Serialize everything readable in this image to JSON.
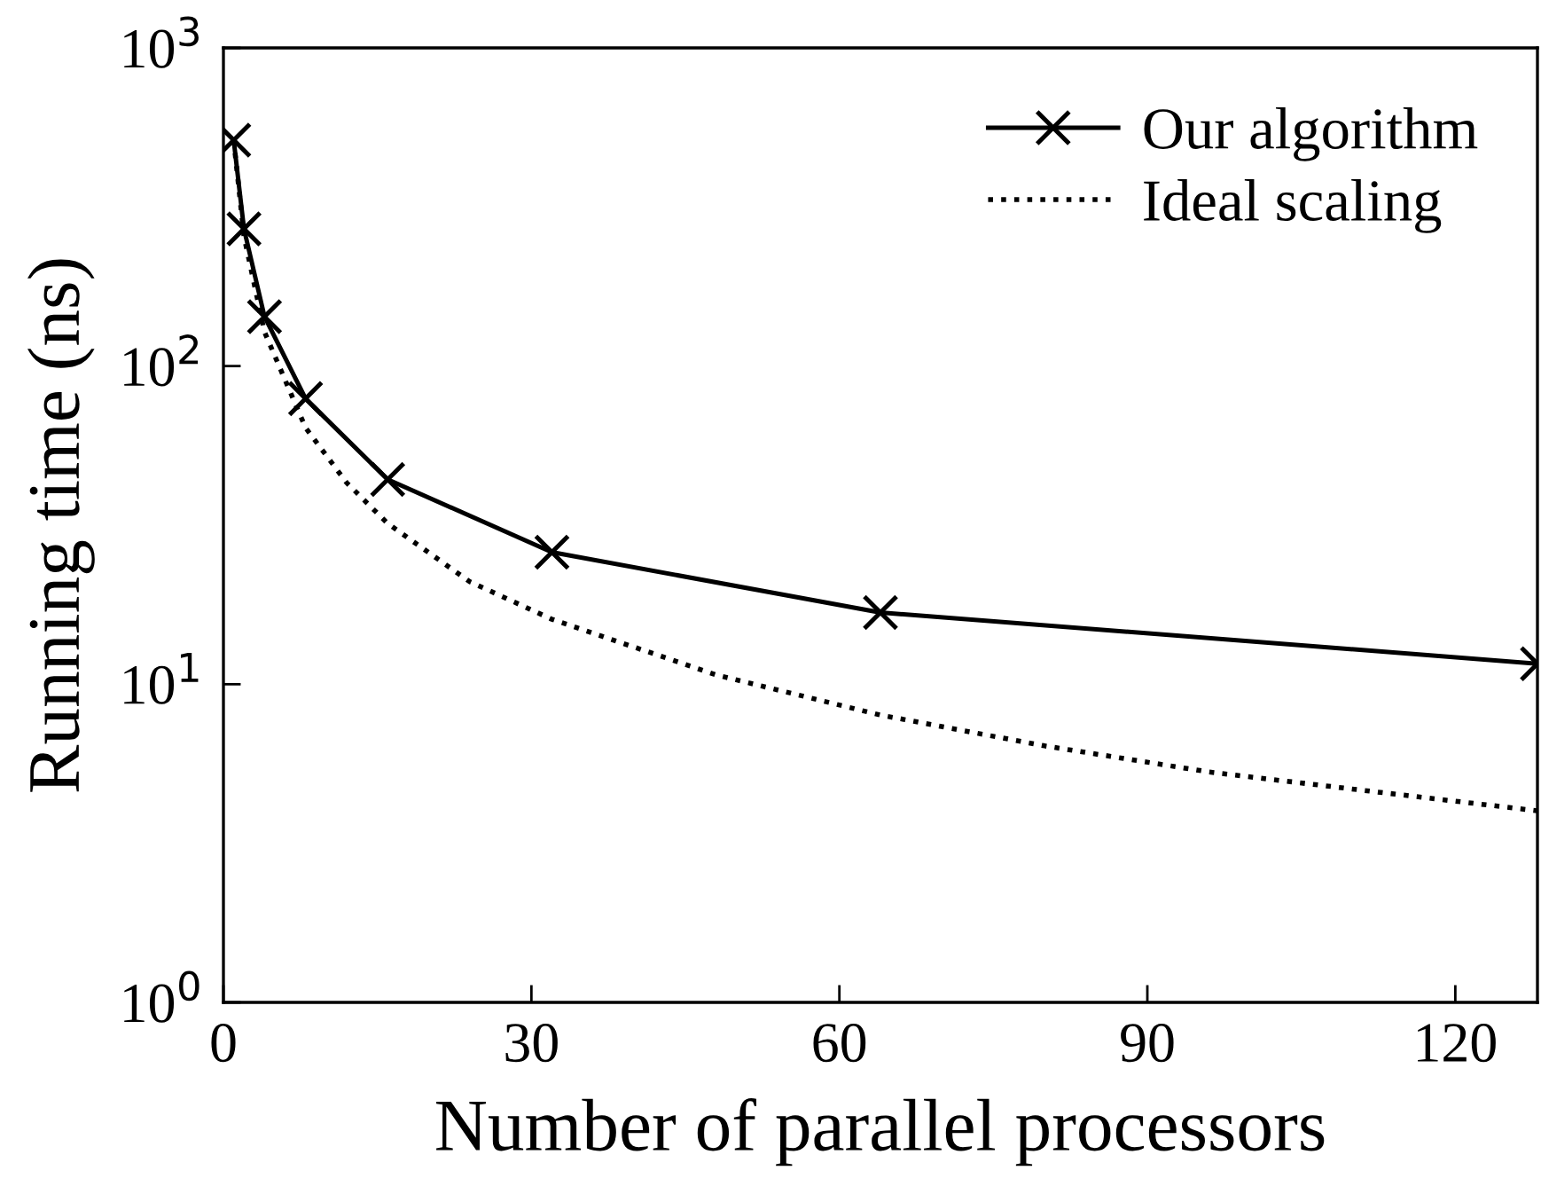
{
  "chart_data": {
    "type": "line",
    "xlabel": "Number of parallel processors",
    "ylabel": "Running time (ns)",
    "log": "y",
    "xlim": [
      0,
      128
    ],
    "xticks": [
      0,
      30,
      60,
      90,
      120
    ],
    "ylim": [
      1,
      1000
    ],
    "yticks": [
      {
        "value": 1,
        "label": "10$^{0}$"
      },
      {
        "value": 10,
        "label": "10$^{1}$"
      },
      {
        "value": 100,
        "label": "10$^{2}$"
      },
      {
        "value": 1000,
        "label": "10$^{3}$"
      }
    ],
    "legend": "top right",
    "grid": false,
    "series": [
      {
        "name": "Our algorithm",
        "color": "#000000",
        "marker": "cross",
        "line_style": "solid",
        "x": [
          1,
          2,
          4,
          8,
          16,
          32,
          64,
          128
        ],
        "values": [
          513,
          270,
          143,
          79,
          44,
          26,
          16.8,
          11.6
        ]
      },
      {
        "name": "Ideal scaling",
        "color": "#000000",
        "marker": "none",
        "line_style": "dotted",
        "x": [
          1,
          2,
          4,
          8,
          12,
          16,
          24,
          32,
          48,
          64,
          80,
          96,
          112,
          128
        ],
        "values": [
          513,
          256,
          128,
          64,
          43,
          32,
          21,
          16,
          10.7,
          8.0,
          6.4,
          5.3,
          4.6,
          4.0
        ]
      }
    ]
  }
}
